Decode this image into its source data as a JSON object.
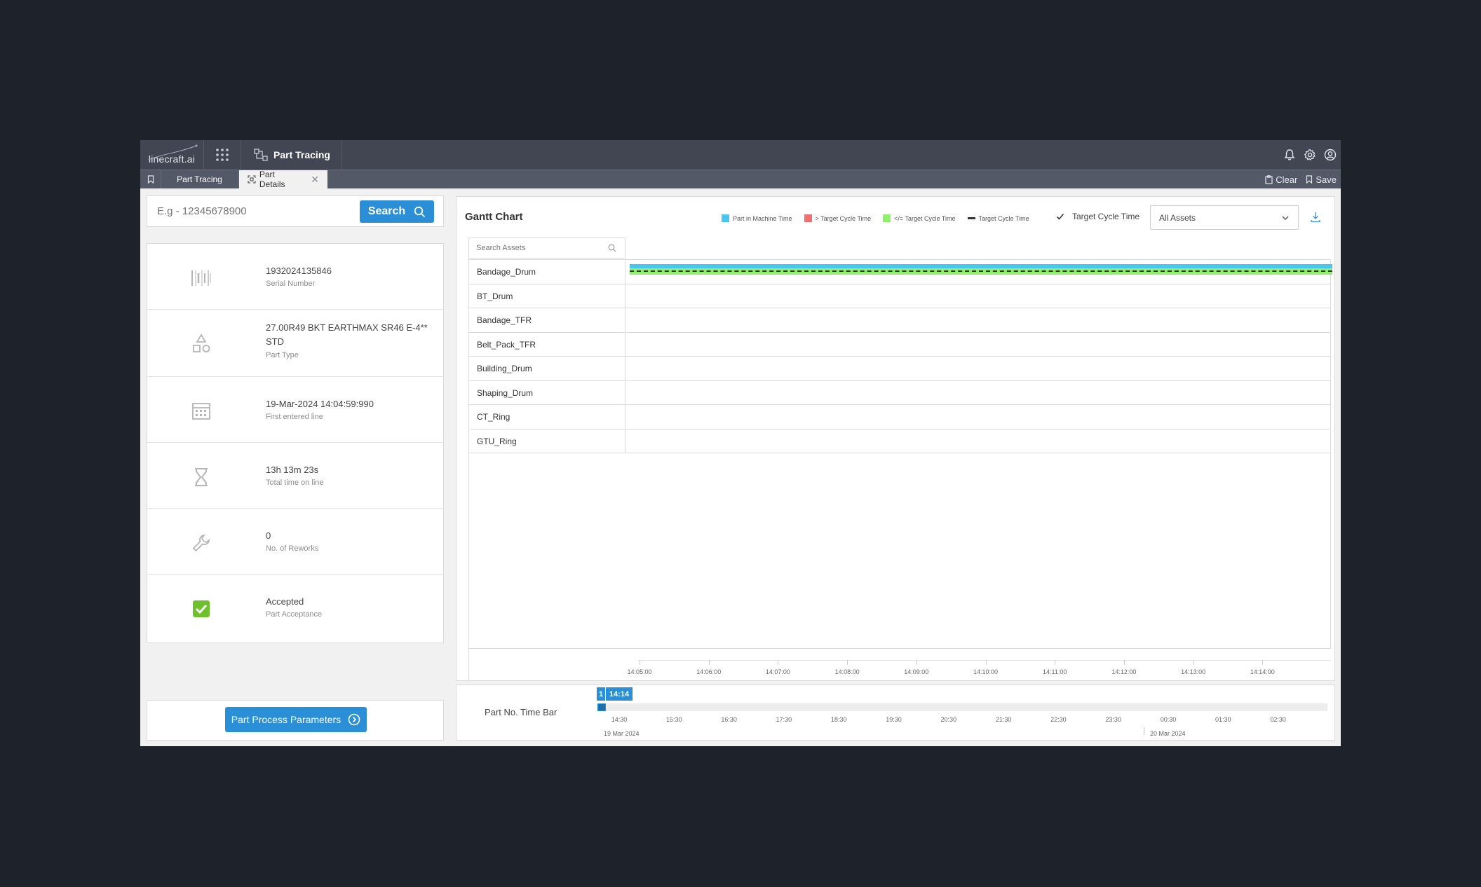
{
  "header": {
    "logo_text": "linecraft.ai",
    "app_title": "Part Tracing",
    "icons": [
      "bell-icon",
      "gear-icon",
      "user-circle-icon"
    ]
  },
  "tabs": {
    "items": [
      {
        "label": "Part Tracing"
      },
      {
        "label": "Part Details"
      }
    ],
    "clear_label": "Clear",
    "save_label": "Save"
  },
  "search": {
    "placeholder": "E.g - 12345678900",
    "button_label": "Search"
  },
  "part_info": [
    {
      "value": "1932024135846",
      "label": "Serial Number",
      "icon": "barcode-icon"
    },
    {
      "value": "27.00R49 BKT EARTHMAX SR46 E-4** STD",
      "label": "Part Type",
      "icon": "shapes-icon"
    },
    {
      "value": "19-Mar-2024 14:04:59:990",
      "label": "First entered line",
      "icon": "calendar-icon"
    },
    {
      "value": "13h 13m 23s",
      "label": "Total time on line",
      "icon": "hourglass-icon"
    },
    {
      "value": "0",
      "label": "No. of Reworks",
      "icon": "wrench-icon"
    },
    {
      "value": "Accepted",
      "label": "Part Acceptance",
      "icon": "check-icon"
    }
  ],
  "process_params_button": "Part Process Parameters",
  "gantt": {
    "title": "Gantt Chart",
    "legend": [
      {
        "label": "Part in Machine Time",
        "color": "#47c6ef"
      },
      {
        "label": "> Target Cycle Time",
        "color": "#f07070"
      },
      {
        "label": "</= Target Cycle Time",
        "color": "#8ff06c"
      },
      {
        "label": "Target Cycle Time",
        "color": "#333333"
      }
    ],
    "target_cycle_checkbox_label": "Target Cycle Time",
    "target_cycle_checked": true,
    "asset_select_value": "All Assets",
    "search_placeholder": "Search Assets",
    "assets": [
      "Bandage_Drum",
      "BT_Drum",
      "Bandage_TFR",
      "Belt_Pack_TFR",
      "Building_Drum",
      "Shaping_Drum",
      "CT_Ring",
      "GTU_Ring"
    ],
    "time_ticks": [
      "14:05:00",
      "14:06:00",
      "14:07:00",
      "14:08:00",
      "14:09:00",
      "14:10:00",
      "14:11:00",
      "14:12:00",
      "14:13:00",
      "14:14:00"
    ]
  },
  "timebar": {
    "label": "Part No. Time Bar",
    "badge_short": "1",
    "badge_time": "14:14",
    "ticks": [
      "14:30",
      "15:30",
      "16:30",
      "17:30",
      "18:30",
      "19:30",
      "20:30",
      "21:30",
      "22:30",
      "23:30",
      "00:30",
      "01:30",
      "02:30"
    ],
    "date_start": "19 Mar 2024",
    "date_end": "20 Mar 2024"
  }
}
